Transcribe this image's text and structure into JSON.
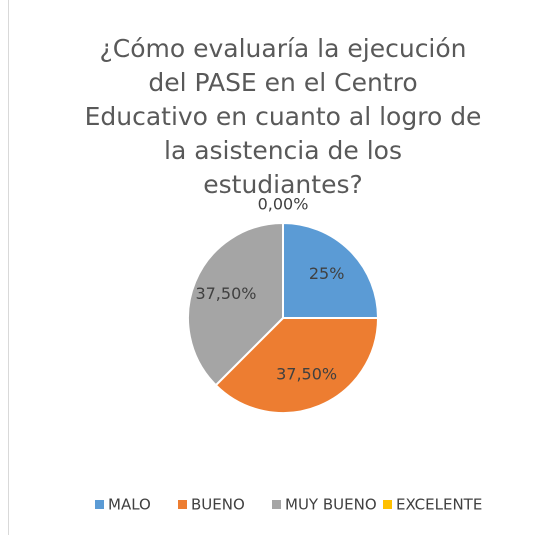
{
  "chart_data": {
    "type": "pie",
    "title": "¿Cómo evaluaría la ejecución del PASE en el Centro Educativo en cuanto al logro de la asistencia de los estudiantes?",
    "categories": [
      "MALO",
      "BUENO",
      "MUY BUENO",
      "EXCELENTE"
    ],
    "values": [
      25,
      37.5,
      37.5,
      0
    ],
    "value_labels": [
      "25%",
      "37,50%",
      "37,50%",
      "0,00%"
    ],
    "colors": [
      "#5b9bd5",
      "#ed7d31",
      "#a5a5a5",
      "#ffc000"
    ],
    "legend": "bottom"
  }
}
